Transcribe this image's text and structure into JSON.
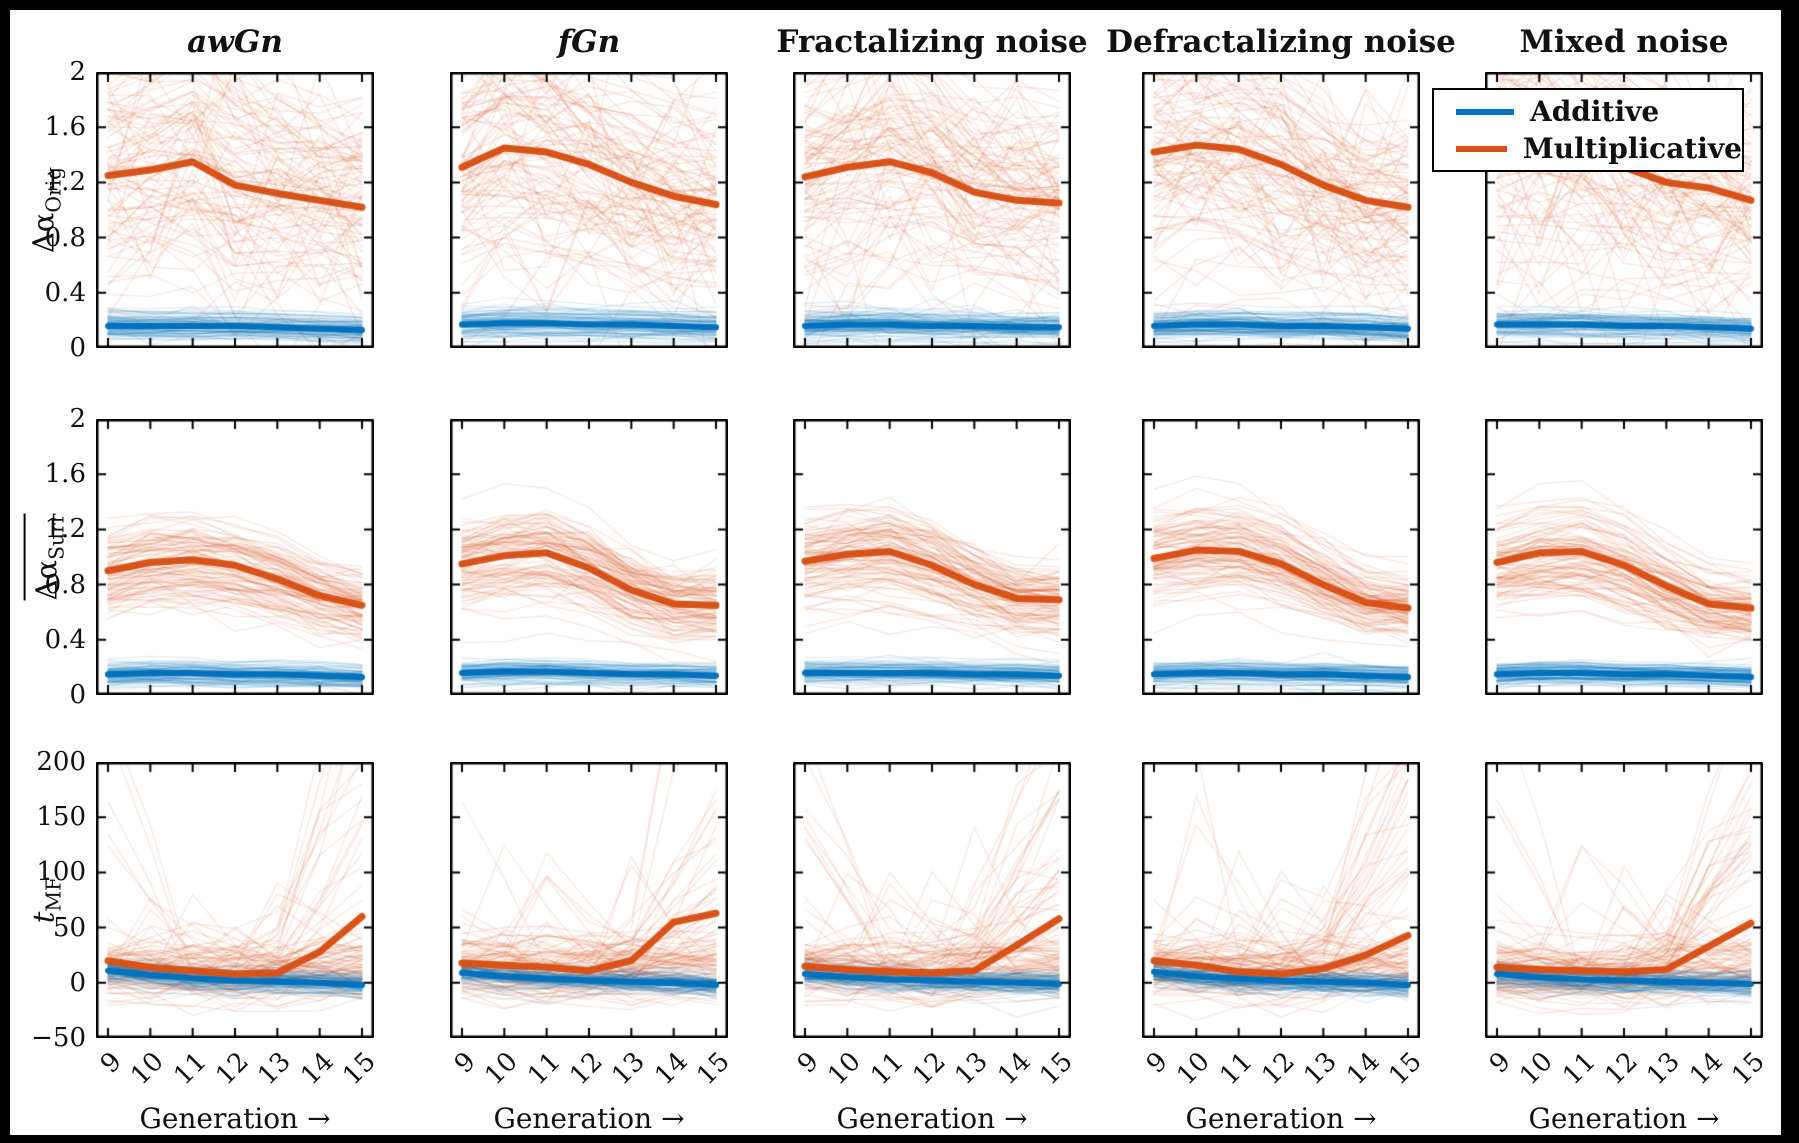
{
  "figure": {
    "background": "#000000",
    "panel_background": "#ffffff",
    "column_titles": [
      {
        "label": "awGn",
        "italic": true
      },
      {
        "label": "fGn",
        "italic": true
      },
      {
        "label": "Fractalizing noise",
        "italic": false
      },
      {
        "label": "Defractalizing noise",
        "italic": false
      },
      {
        "label": "Mixed noise",
        "italic": false
      }
    ]
  },
  "legend": {
    "items": [
      {
        "label": "Additive",
        "color": "#0072BD"
      },
      {
        "label": "Multiplicative",
        "color": "#D95319"
      }
    ]
  },
  "axes": {
    "x": {
      "label_full": "Generation →",
      "ticks": [
        9,
        10,
        11,
        12,
        13,
        14,
        15
      ],
      "tick_labels": [
        "9",
        "10",
        "11",
        "12",
        "13",
        "14",
        "15"
      ]
    },
    "rows": [
      {
        "key": "dAlphaOrig",
        "ylabel_main": "Δα",
        "ylabel_sub": "Orig",
        "overline": false,
        "italic_main": false,
        "ylim": [
          0,
          2
        ],
        "yticks": [
          0,
          0.4,
          0.8,
          1.2,
          1.6,
          2
        ],
        "ytick_labels": [
          "0",
          "0.4",
          "0.8",
          "1.2",
          "1.6",
          "2"
        ]
      },
      {
        "key": "dAlphaSurr",
        "ylabel_main": "Δα",
        "ylabel_sub": "Surr",
        "overline": true,
        "italic_main": false,
        "ylim": [
          0,
          2
        ],
        "yticks": [
          0,
          0.4,
          0.8,
          1.2,
          1.6,
          2
        ],
        "ytick_labels": [
          "0",
          "0.4",
          "0.8",
          "1.2",
          "1.6",
          "2"
        ]
      },
      {
        "key": "tMF",
        "ylabel_main": "t",
        "ylabel_sub": "MF",
        "overline": false,
        "italic_main": true,
        "ylim": [
          -50,
          200
        ],
        "yticks": [
          -50,
          0,
          50,
          100,
          150,
          200
        ],
        "ytick_labels": [
          "−50",
          "0",
          "50",
          "100",
          "150",
          "200"
        ]
      }
    ]
  },
  "chart_data": {
    "type": "line",
    "x": [
      9,
      10,
      11,
      12,
      13,
      14,
      15
    ],
    "x_label": "Generation →",
    "columns": [
      "awGn",
      "fGn",
      "Fractalizing noise",
      "Defractalizing noise",
      "Mixed noise"
    ],
    "row_labels": [
      "ΔαOrig",
      "mean ΔαSurr",
      "tMF"
    ],
    "row_ylims": [
      [
        0,
        2
      ],
      [
        0,
        2
      ],
      [
        -50,
        200
      ]
    ],
    "legend_entries": [
      "Additive",
      "Multiplicative"
    ],
    "means": {
      "Multiplicative": [
        [
          [
            1.25,
            1.29,
            1.35,
            1.18,
            1.12,
            1.07,
            1.02
          ],
          [
            1.31,
            1.45,
            1.42,
            1.33,
            1.2,
            1.1,
            1.04
          ],
          [
            1.24,
            1.31,
            1.35,
            1.27,
            1.13,
            1.07,
            1.05
          ],
          [
            1.42,
            1.47,
            1.44,
            1.33,
            1.18,
            1.07,
            1.02
          ],
          [
            1.42,
            1.46,
            1.4,
            1.31,
            1.2,
            1.16,
            1.07
          ]
        ],
        [
          [
            0.9,
            0.96,
            0.98,
            0.94,
            0.84,
            0.72,
            0.65
          ],
          [
            0.95,
            1.01,
            1.03,
            0.92,
            0.76,
            0.66,
            0.65
          ],
          [
            0.97,
            1.02,
            1.04,
            0.94,
            0.8,
            0.7,
            0.69
          ],
          [
            0.99,
            1.05,
            1.04,
            0.95,
            0.8,
            0.67,
            0.63
          ],
          [
            0.96,
            1.03,
            1.04,
            0.94,
            0.79,
            0.66,
            0.63
          ]
        ],
        [
          [
            20,
            14,
            11,
            8,
            9,
            28,
            60
          ],
          [
            18,
            16,
            14,
            11,
            20,
            55,
            63
          ],
          [
            15,
            12,
            10,
            9,
            11,
            34,
            58
          ],
          [
            20,
            16,
            10,
            8,
            13,
            25,
            43
          ],
          [
            14,
            12,
            11,
            10,
            12,
            33,
            54
          ]
        ]
      ],
      "Additive": [
        [
          [
            0.16,
            0.16,
            0.16,
            0.16,
            0.15,
            0.14,
            0.13
          ],
          [
            0.17,
            0.18,
            0.18,
            0.17,
            0.17,
            0.16,
            0.15
          ],
          [
            0.16,
            0.17,
            0.17,
            0.16,
            0.16,
            0.15,
            0.15
          ],
          [
            0.16,
            0.17,
            0.17,
            0.16,
            0.16,
            0.15,
            0.14
          ],
          [
            0.17,
            0.17,
            0.17,
            0.16,
            0.16,
            0.15,
            0.14
          ]
        ],
        [
          [
            0.15,
            0.16,
            0.16,
            0.15,
            0.15,
            0.14,
            0.13
          ],
          [
            0.16,
            0.17,
            0.17,
            0.16,
            0.15,
            0.15,
            0.14
          ],
          [
            0.16,
            0.16,
            0.16,
            0.16,
            0.15,
            0.15,
            0.14
          ],
          [
            0.15,
            0.16,
            0.16,
            0.15,
            0.15,
            0.14,
            0.13
          ],
          [
            0.15,
            0.16,
            0.16,
            0.15,
            0.15,
            0.14,
            0.13
          ]
        ],
        [
          [
            11,
            7,
            4,
            2,
            1,
            0,
            -2
          ],
          [
            9,
            6,
            4,
            2,
            1,
            0,
            -2
          ],
          [
            8,
            5,
            3,
            2,
            1,
            0,
            -1
          ],
          [
            10,
            6,
            4,
            2,
            1,
            0,
            -2
          ],
          [
            8,
            5,
            3,
            2,
            1,
            0,
            -1
          ]
        ]
      ]
    }
  },
  "ensemble_style": {
    "line_count": 100,
    "alpha_orange": 0.15,
    "alpha_blue": 0.13,
    "seed": 1234,
    "rows": [
      {
        "multiplicative": {
          "mult_sd": 0.3,
          "off_sd": 0.1,
          "jitter": 0.13,
          "wild_p": 0.3,
          "wild_mult": 3.2
        },
        "additive": {
          "mult_sd": 0.22,
          "off_sd": 0.035,
          "jitter": 0.012,
          "wild_p": 0.1,
          "wild_mult": 4.0
        }
      },
      {
        "multiplicative": {
          "mult_sd": 0.16,
          "off_sd": 0.07,
          "jitter": 0.045,
          "wild_p": 0.1,
          "wild_mult": 2.2
        },
        "additive": {
          "mult_sd": 0.2,
          "off_sd": 0.03,
          "jitter": 0.01,
          "wild_p": 0.08,
          "wild_mult": 3.5
        }
      },
      {
        "multiplicative": {
          "off_sd": 11,
          "jitter": 8,
          "spike_p": 0.3,
          "spike_mag": 90,
          "early_p": 0.06,
          "early_mag": 100,
          "bump_p": 0.18,
          "bump_mag": 45,
          "base": [
            13,
            11,
            10,
            9,
            10,
            12,
            14
          ]
        },
        "additive": {
          "off_sd": 4.5,
          "jitter": 3.5
        }
      }
    ]
  }
}
